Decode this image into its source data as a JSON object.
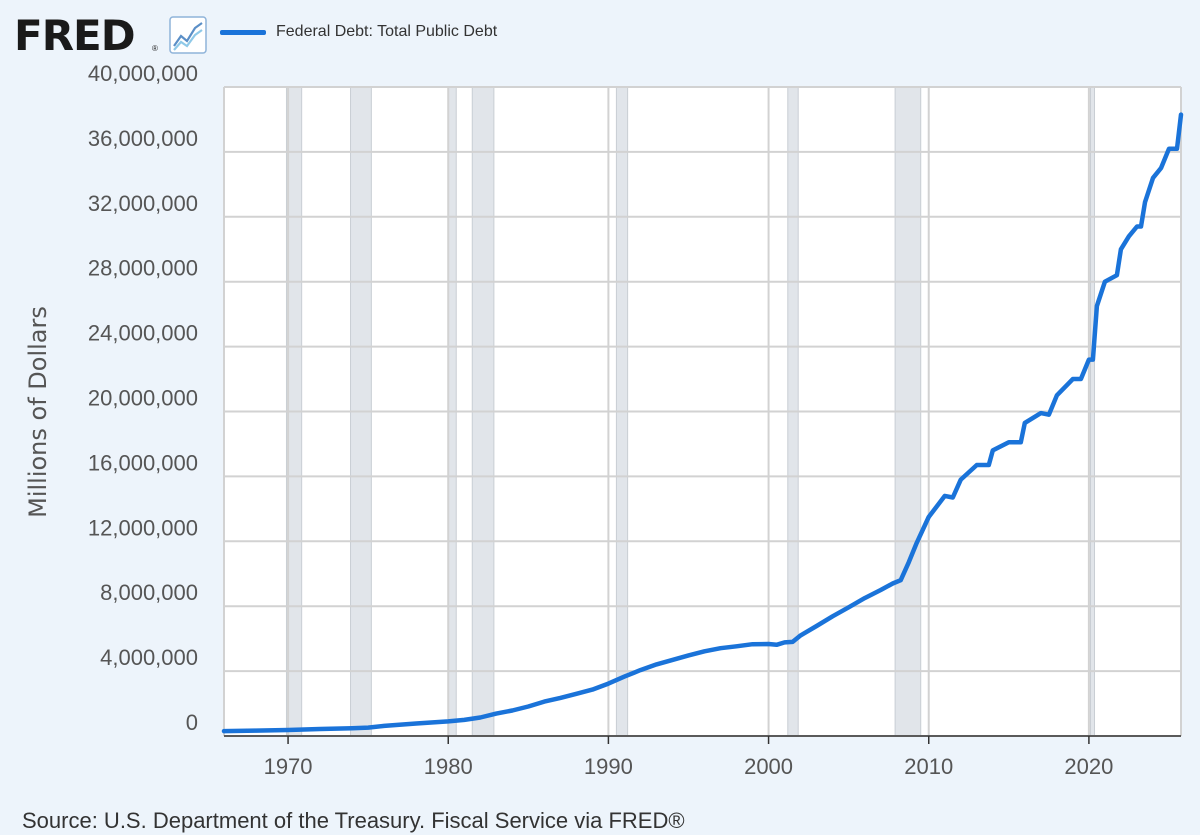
{
  "header": {
    "logo_text": "FRED",
    "logo_mark": "®",
    "graph_icon": "line-chart-icon"
  },
  "colors": {
    "series": "#1a73d9",
    "recession": "#e1e5ea",
    "grid": "#d2d2d2",
    "background": "#edf4fb",
    "plot_background": "#ffffff"
  },
  "chart_data": {
    "type": "line",
    "title": "",
    "ylabel": "Millions of Dollars",
    "xlabel": "",
    "xlim": [
      1966.0,
      2025.75
    ],
    "ylim": [
      0,
      40000000
    ],
    "yticks": [
      0,
      4000000,
      8000000,
      12000000,
      16000000,
      20000000,
      24000000,
      28000000,
      32000000,
      36000000,
      40000000
    ],
    "ytick_labels": [
      "0",
      "4,000,000",
      "8,000,000",
      "12,000,000",
      "16,000,000",
      "20,000,000",
      "24,000,000",
      "28,000,000",
      "32,000,000",
      "36,000,000",
      "40,000,000"
    ],
    "xticks": [
      1970,
      1980,
      1990,
      2000,
      2010,
      2020
    ],
    "xtick_labels": [
      "1970",
      "1980",
      "1990",
      "2000",
      "2010",
      "2020"
    ],
    "grid": true,
    "legend": "top-left",
    "recessions": [
      [
        1969.9,
        1970.85
      ],
      [
        1973.9,
        1975.2
      ],
      [
        1980.0,
        1980.5
      ],
      [
        1981.5,
        1982.85
      ],
      [
        1990.5,
        1991.2
      ],
      [
        2001.2,
        2001.85
      ],
      [
        2007.9,
        2009.5
      ],
      [
        2020.1,
        2020.35
      ]
    ],
    "series": [
      {
        "name": "Federal Debt: Total Public Debt",
        "x": [
          1966.0,
          1968.0,
          1970.0,
          1972.0,
          1974.0,
          1975.0,
          1976.0,
          1978.0,
          1980.0,
          1981.0,
          1982.0,
          1983.0,
          1984.0,
          1985.0,
          1986.0,
          1987.0,
          1988.0,
          1989.0,
          1990.0,
          1991.0,
          1992.0,
          1993.0,
          1994.0,
          1995.0,
          1996.0,
          1997.0,
          1998.0,
          1999.0,
          2000.0,
          2000.5,
          2001.0,
          2001.5,
          2002.0,
          2003.0,
          2004.0,
          2005.0,
          2006.0,
          2007.0,
          2007.75,
          2008.25,
          2008.75,
          2009.25,
          2010.0,
          2011.0,
          2011.5,
          2012.0,
          2013.0,
          2013.75,
          2014.0,
          2015.0,
          2015.75,
          2016.0,
          2017.0,
          2017.5,
          2018.0,
          2019.0,
          2019.5,
          2020.0,
          2020.25,
          2020.5,
          2021.0,
          2021.75,
          2022.0,
          2022.5,
          2023.0,
          2023.25,
          2023.5,
          2024.0,
          2024.5,
          2025.0,
          2025.5,
          2025.75
        ],
        "values": [
          300000,
          330000,
          370000,
          430000,
          480000,
          520000,
          620000,
          770000,
          900000,
          990000,
          1140000,
          1380000,
          1570000,
          1820000,
          2120000,
          2350000,
          2600000,
          2860000,
          3230000,
          3660000,
          4060000,
          4410000,
          4690000,
          4970000,
          5220000,
          5410000,
          5530000,
          5660000,
          5670000,
          5620000,
          5770000,
          5800000,
          6200000,
          6780000,
          7380000,
          7930000,
          8500000,
          9000000,
          9400000,
          9600000,
          10700000,
          11900000,
          13500000,
          14800000,
          14700000,
          15800000,
          16700000,
          16700000,
          17600000,
          18100000,
          18100000,
          19300000,
          19900000,
          19800000,
          21000000,
          22000000,
          22000000,
          23200000,
          23200000,
          26500000,
          28000000,
          28400000,
          30000000,
          30800000,
          31400000,
          31400000,
          32900000,
          34400000,
          35000000,
          36200000,
          36200000,
          38300000
        ]
      }
    ]
  },
  "source_text": "Source: U.S. Department of the Treasury. Fiscal Service via FRED®"
}
